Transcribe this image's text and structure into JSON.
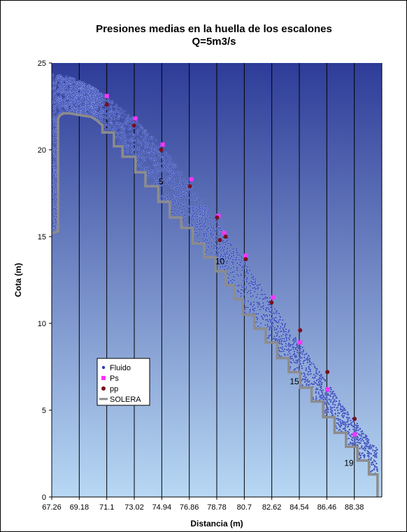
{
  "chart_data": {
    "type": "scatter",
    "title": "Presiones medias en la huella de los escalones",
    "subtitle": "Q=5m3/s",
    "xlabel": "Distancia (m)",
    "ylabel": "Cota (m)",
    "xlim": [
      67.26,
      90.3
    ],
    "ylim": [
      0,
      25
    ],
    "x_ticks": [
      "67.26",
      "69.18",
      "71.1",
      "73.02",
      "74.94",
      "76.86",
      "78.78",
      "80.7",
      "82.62",
      "84.54",
      "86.46",
      "88.38"
    ],
    "y_ticks": [
      "0",
      "5",
      "10",
      "15",
      "20",
      "25"
    ],
    "grid": {
      "vertical": true,
      "horizontal": false
    },
    "legend_position": "left-middle",
    "colors": {
      "background_top": "#2e3c98",
      "background_bottom": "#b8d8f4",
      "fluid": "#2b3fb0",
      "ps": "#ff33ff",
      "pp": "#7a0f1e",
      "solera": "#8c8c8c"
    },
    "step_labels": [
      {
        "text": "5",
        "x": 74.9,
        "y": 18.0
      },
      {
        "text": "10",
        "x": 79.0,
        "y": 13.4
      },
      {
        "text": "15",
        "x": 84.2,
        "y": 6.5
      },
      {
        "text": "19",
        "x": 88.0,
        "y": 1.8
      }
    ],
    "series": [
      {
        "name": "Fluido",
        "style": "dot-cloud",
        "upper_x": [
          67.26,
          68.5,
          70.0,
          71.5,
          73.0,
          74.5,
          75.5,
          76.5,
          77.5,
          78.5,
          79.5,
          80.5,
          81.5,
          82.5,
          83.5,
          84.5,
          85.5,
          86.5,
          87.5,
          88.5,
          89.5,
          90.0
        ],
        "upper_y": [
          24.4,
          24.2,
          23.7,
          22.8,
          21.8,
          20.6,
          19.6,
          18.5,
          17.3,
          16.2,
          15.0,
          13.9,
          12.6,
          11.4,
          10.1,
          9.0,
          7.7,
          6.6,
          5.4,
          4.3,
          3.2,
          2.8
        ]
      },
      {
        "name": "Ps",
        "x": [
          71.1,
          73.1,
          75.0,
          77.0,
          78.9,
          79.3,
          80.8,
          82.7,
          84.6,
          86.5,
          88.4
        ],
        "y": [
          23.1,
          21.8,
          20.3,
          18.3,
          16.2,
          15.2,
          13.9,
          11.5,
          8.9,
          6.2,
          3.6
        ]
      },
      {
        "name": "pp",
        "x": [
          71.1,
          73.0,
          74.9,
          76.9,
          78.8,
          79.0,
          79.4,
          80.8,
          82.6,
          84.6,
          86.5,
          88.4
        ],
        "y": [
          22.6,
          21.4,
          20.0,
          17.9,
          16.1,
          14.8,
          15.0,
          13.7,
          11.2,
          9.6,
          7.2,
          4.5
        ]
      },
      {
        "name": "SOLERA",
        "style": "line",
        "x": [
          67.26,
          67.7,
          67.7,
          67.85,
          68.1,
          68.5,
          69.2,
          70.0,
          70.4,
          70.8,
          70.8,
          71.6,
          71.6,
          72.2,
          72.2,
          73.1,
          73.1,
          73.8,
          73.8,
          74.7,
          74.7,
          75.5,
          75.5,
          76.3,
          76.3,
          77.1,
          77.1,
          77.9,
          77.9,
          78.7,
          78.7,
          79.4,
          79.4,
          80.0,
          80.0,
          80.6,
          80.6,
          81.4,
          81.4,
          82.2,
          82.2,
          83.0,
          83.0,
          83.8,
          83.8,
          84.6,
          84.6,
          85.4,
          85.4,
          86.2,
          86.2,
          87.0,
          87.0,
          87.8,
          87.8,
          88.6,
          88.6,
          89.4,
          89.4,
          90.0,
          90.0
        ],
        "y": [
          15.2,
          15.3,
          21.8,
          22.0,
          22.1,
          22.1,
          22.0,
          21.9,
          21.7,
          21.4,
          21.0,
          21.0,
          20.2,
          20.2,
          19.6,
          19.6,
          18.7,
          18.7,
          17.9,
          17.9,
          17.0,
          17.0,
          16.1,
          16.1,
          15.5,
          15.5,
          14.6,
          14.6,
          13.8,
          13.8,
          13.0,
          13.0,
          12.2,
          12.2,
          11.4,
          11.4,
          10.5,
          10.5,
          9.7,
          9.7,
          8.9,
          8.9,
          8.0,
          8.0,
          7.2,
          7.2,
          6.3,
          6.3,
          5.5,
          5.5,
          4.6,
          4.6,
          3.7,
          3.7,
          2.9,
          2.9,
          2.1,
          2.1,
          1.3,
          1.3,
          0.0
        ]
      }
    ]
  }
}
